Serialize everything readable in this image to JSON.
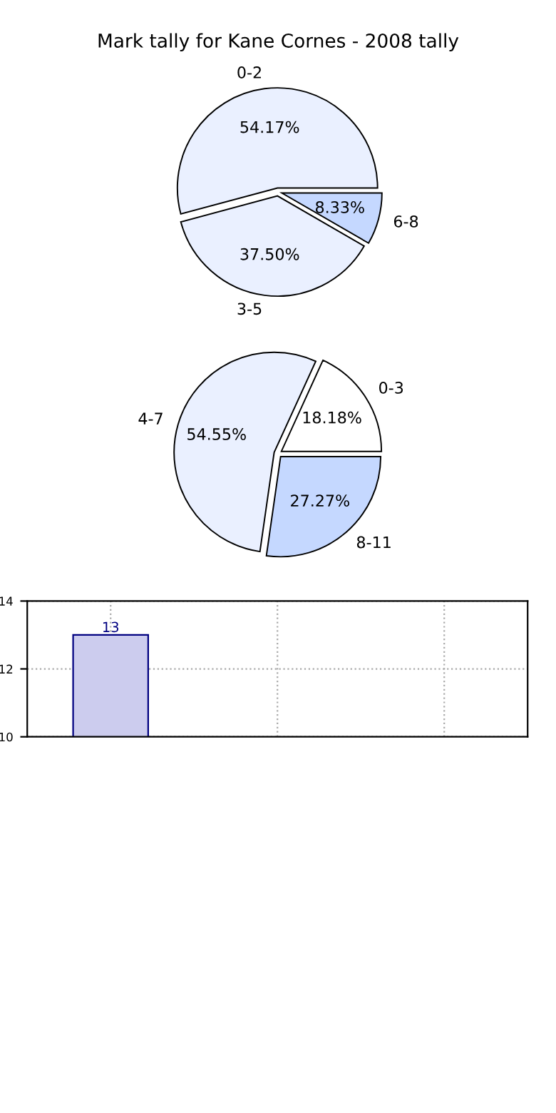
{
  "chart_data": [
    {
      "type": "pie",
      "title": "Mark tally for Kane Cornes - 2008 tally",
      "categories": [
        "0-2",
        "3-5",
        "6-8"
      ],
      "values": [
        54.17,
        37.5,
        8.33
      ],
      "colors": [
        "#eaf0ff",
        "#eaf0ff",
        "#c5d8ff"
      ],
      "value_labels": [
        "54.17%",
        "37.50%",
        "8.33%"
      ]
    },
    {
      "type": "pie",
      "categories": [
        "0-3",
        "4-7",
        "8-11"
      ],
      "values": [
        18.18,
        54.55,
        27.27
      ],
      "colors": [
        "#ffffff",
        "#eaf0ff",
        "#c5d8ff"
      ],
      "value_labels": [
        "18.18%",
        "54.55%",
        "27.27%"
      ]
    },
    {
      "type": "bar",
      "categories": [
        null,
        null,
        null
      ],
      "values": [
        13,
        null,
        null
      ],
      "color": "#ccccee",
      "ylim": [
        10,
        14
      ],
      "yticks": [
        10,
        12,
        14
      ],
      "grid": true,
      "data_labels": true
    }
  ]
}
